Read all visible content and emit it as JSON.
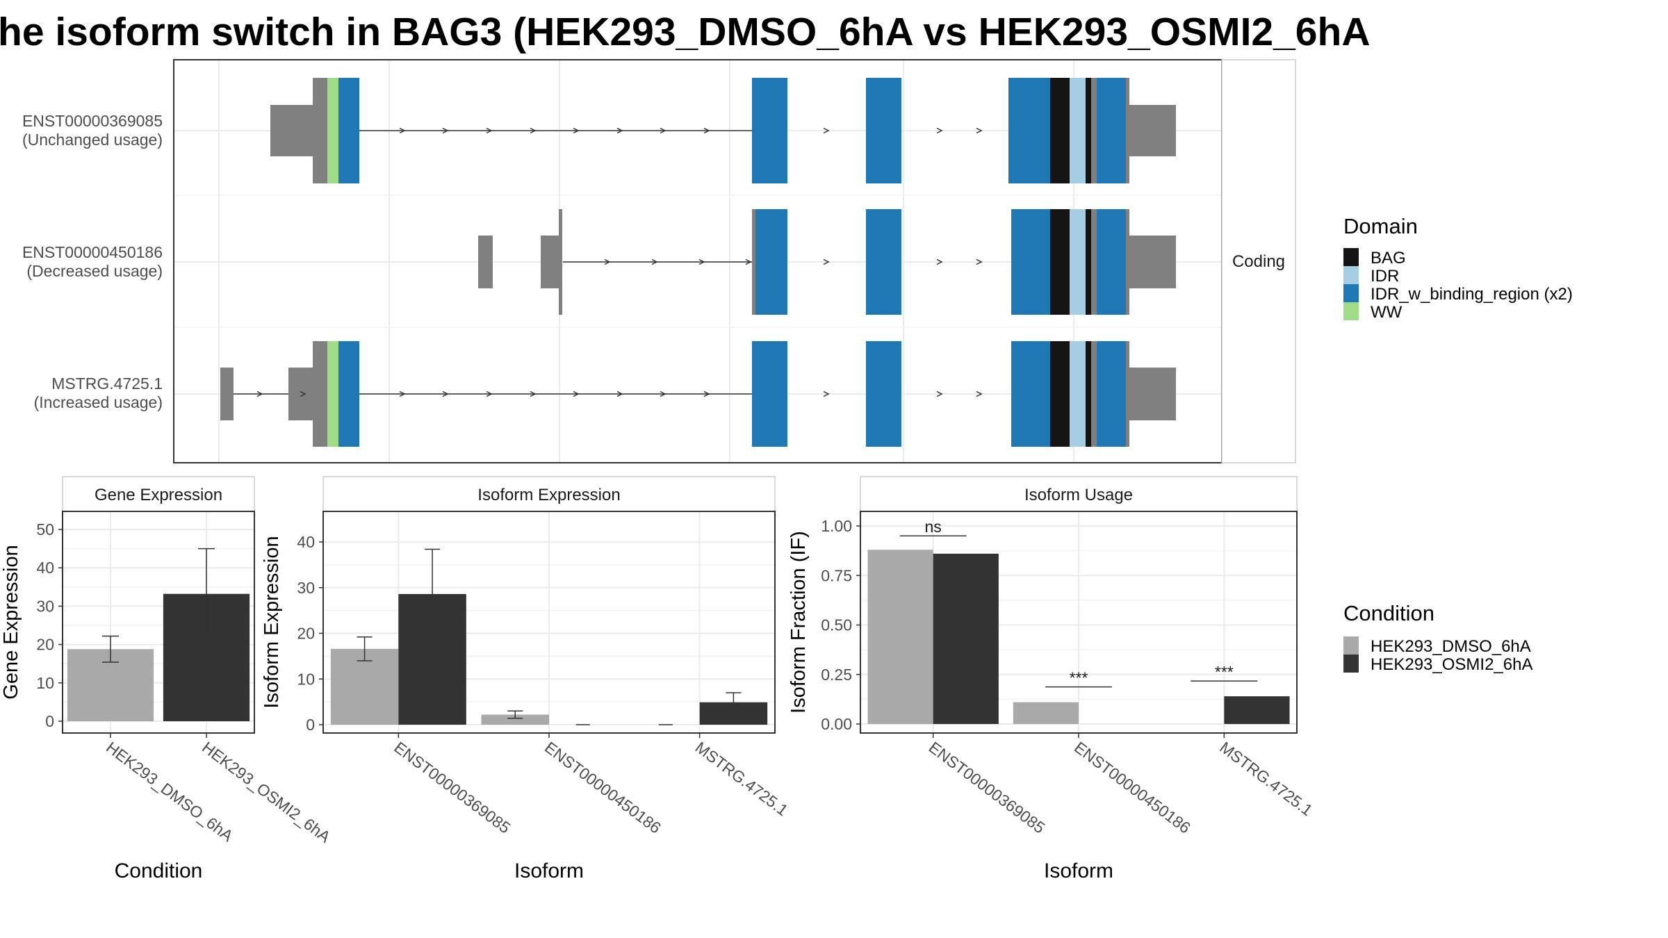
{
  "title": "he isoform switch in BAG3 (HEK293_DMSO_6hA vs HEK293_OSMI2_6hA",
  "colors": {
    "utr": "#808080",
    "BAG": "#141414",
    "IDR": "#a6cee3",
    "IDR_w_binding_region": "#1f78b4",
    "WW": "#a1dc8a",
    "dmso": "#a9a9a9",
    "osmi": "#333333"
  },
  "structure": {
    "facet_label": "Coding",
    "transcripts": [
      {
        "id": "ENST00000369085",
        "usage": "(Unchanged usage)"
      },
      {
        "id": "ENST00000450186",
        "usage": "(Decreased usage)"
      },
      {
        "id": "MSTRG.4725.1",
        "usage": "(Increased usage)"
      }
    ]
  },
  "domain_legend": {
    "title": "Domain",
    "items": [
      {
        "label": "BAG",
        "color": "#141414"
      },
      {
        "label": "IDR",
        "color": "#a6cee3"
      },
      {
        "label": "IDR_w_binding_region (x2)",
        "color": "#1f78b4"
      },
      {
        "label": "WW",
        "color": "#a1dc8a"
      }
    ]
  },
  "condition_legend": {
    "title": "Condition",
    "items": [
      {
        "label": "HEK293_DMSO_6hA",
        "color": "#a9a9a9"
      },
      {
        "label": "HEK293_OSMI2_6hA",
        "color": "#333333"
      }
    ]
  },
  "chart_data": [
    {
      "type": "bar",
      "title": "Gene Expression",
      "xlabel": "Condition",
      "ylabel": "Gene Expression",
      "ylim": [
        0,
        55
      ],
      "yticks": [
        0,
        10,
        20,
        30,
        40,
        50
      ],
      "categories": [
        "HEK293_DMSO_6hA",
        "HEK293_OSMI2_6hA"
      ],
      "values": [
        18.8,
        33.2
      ],
      "error": [
        [
          15.4,
          22.2
        ],
        [
          21.4,
          45.0
        ]
      ]
    },
    {
      "type": "bar",
      "title": "Isoform Expression",
      "xlabel": "Isoform",
      "ylabel": "Isoform Expression",
      "ylim": [
        0,
        45
      ],
      "yticks": [
        0,
        10,
        20,
        30,
        40
      ],
      "categories": [
        "ENST00000369085",
        "ENST00000450186",
        "MSTRG.4725.1"
      ],
      "series": [
        {
          "name": "HEK293_DMSO_6hA",
          "values": [
            16.6,
            2.2,
            0.0
          ],
          "error": [
            [
              14.0,
              19.2
            ],
            [
              1.4,
              3.0
            ],
            [
              0.0,
              0.0
            ]
          ]
        },
        {
          "name": "HEK293_OSMI2_6hA",
          "values": [
            28.6,
            0.0,
            4.9
          ],
          "error": [
            [
              18.8,
              38.4
            ],
            [
              0.0,
              0.0
            ],
            [
              2.8,
              7.0
            ]
          ]
        }
      ]
    },
    {
      "type": "bar",
      "title": "Isoform Usage",
      "xlabel": "Isoform",
      "ylabel": "Isoform Fraction (IF)",
      "ylim": [
        0,
        1.05
      ],
      "yticks": [
        "0.00",
        "0.25",
        "0.50",
        "0.75",
        "1.00"
      ],
      "categories": [
        "ENST00000369085",
        "ENST00000450186",
        "MSTRG.4725.1"
      ],
      "series": [
        {
          "name": "HEK293_DMSO_6hA",
          "values": [
            0.88,
            0.11,
            0.0
          ]
        },
        {
          "name": "HEK293_OSMI2_6hA",
          "values": [
            0.86,
            0.0,
            0.14
          ]
        }
      ],
      "annotations": [
        "ns",
        "***",
        "***"
      ]
    }
  ]
}
